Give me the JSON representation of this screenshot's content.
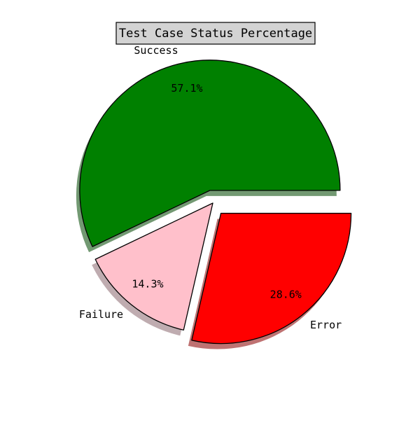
{
  "chart_data": {
    "type": "pie",
    "title": "Test Case Status Percentage",
    "slices": [
      {
        "label": "Success",
        "value": 57.1,
        "pct_label": "57.1%",
        "color": "#008000",
        "exploded": true
      },
      {
        "label": "Failure",
        "value": 14.3,
        "pct_label": "14.3%",
        "color": "#ffc0cb",
        "exploded": false
      },
      {
        "label": "Error",
        "value": 28.6,
        "pct_label": "28.6%",
        "color": "#ff0000",
        "exploded": true
      }
    ],
    "shadow": true,
    "title_box_color": "#d3d3d3"
  }
}
